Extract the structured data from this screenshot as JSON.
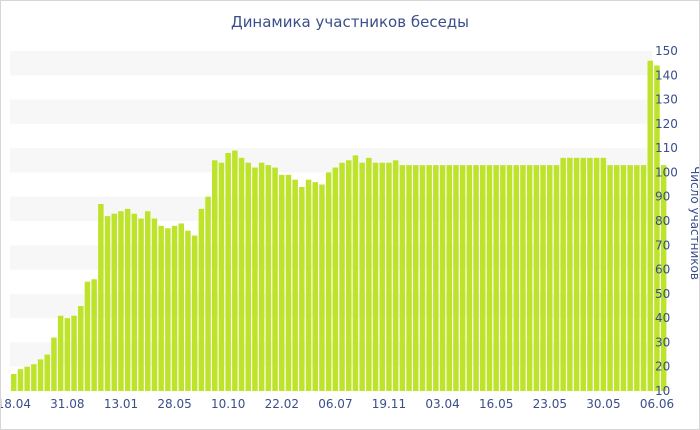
{
  "chart_data": {
    "type": "bar",
    "title": "Динамика участников беседы",
    "xlabel": "",
    "ylabel": "Число участников",
    "ylim": [
      10,
      150
    ],
    "yticks": [
      10,
      20,
      30,
      40,
      50,
      60,
      70,
      80,
      90,
      100,
      110,
      120,
      130,
      140,
      150
    ],
    "y_axis_position": "right",
    "grid": "alternating horizontal bands",
    "bar_color": "#bde32a",
    "band_color": "#f7f7f7",
    "text_color": "#3a4f8a",
    "x_tick_labels": [
      "18.04",
      "31.08",
      "13.01",
      "28.05",
      "10.10",
      "22.02",
      "06.07",
      "19.11",
      "03.04",
      "16.05",
      "23.05",
      "30.05",
      "06.06"
    ],
    "x_tick_positions": [
      0,
      8,
      16,
      24,
      32,
      40,
      48,
      56,
      64,
      72,
      80,
      88,
      96
    ],
    "values": [
      17,
      19,
      20,
      21,
      23,
      25,
      32,
      41,
      40,
      41,
      45,
      55,
      56,
      87,
      82,
      83,
      84,
      85,
      83,
      81,
      84,
      81,
      78,
      77,
      78,
      79,
      76,
      74,
      85,
      90,
      105,
      104,
      108,
      109,
      106,
      104,
      102,
      104,
      103,
      102,
      99,
      99,
      97,
      94,
      97,
      96,
      95,
      100,
      102,
      104,
      105,
      107,
      104,
      106,
      104,
      104,
      104,
      105,
      103,
      103,
      103,
      103,
      103,
      103,
      103,
      103,
      103,
      103,
      103,
      103,
      103,
      103,
      103,
      103,
      103,
      103,
      103,
      103,
      103,
      103,
      103,
      103,
      106,
      106,
      106,
      106,
      106,
      106,
      106,
      103,
      103,
      103,
      103,
      103,
      103,
      146,
      144,
      103
    ]
  }
}
